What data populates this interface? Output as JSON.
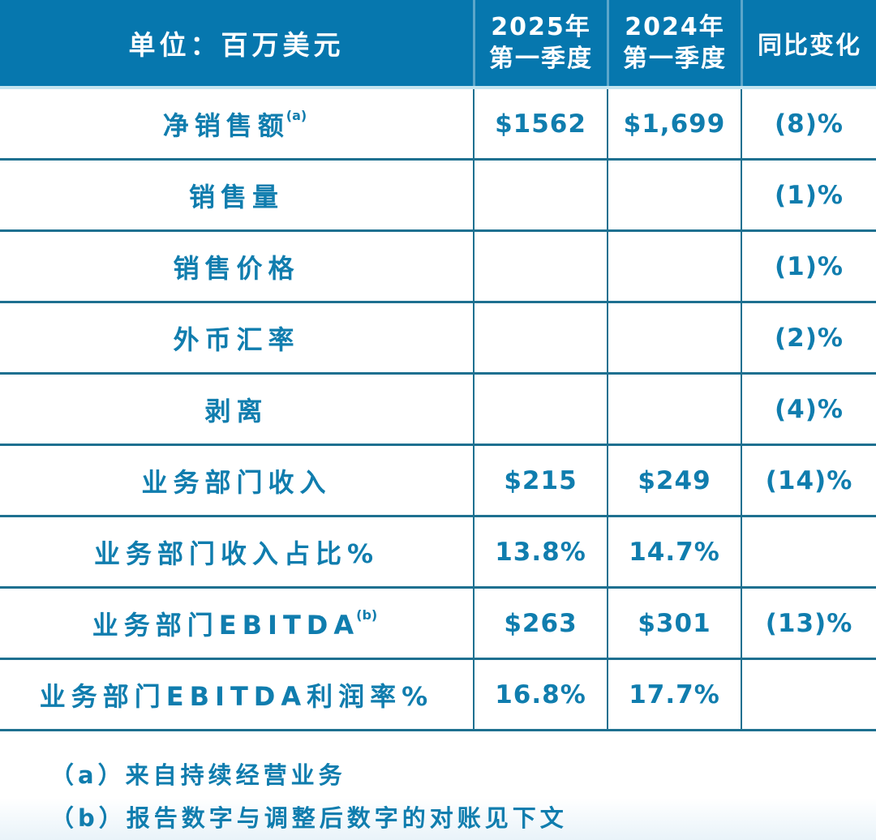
{
  "chart_data": {
    "type": "table",
    "title": "单位：百万美元",
    "columns": [
      "单位：百万美元",
      "2025年第一季度",
      "2024年第一季度",
      "同比变化"
    ],
    "rows": [
      [
        "净销售额(a)",
        "$1562",
        "$1,699",
        "(8)%"
      ],
      [
        "销售量",
        "",
        "",
        "(1)%"
      ],
      [
        "销售价格",
        "",
        "",
        "(1)%"
      ],
      [
        "外币汇率",
        "",
        "",
        "(2)%"
      ],
      [
        "剥离",
        "",
        "",
        "(4)%"
      ],
      [
        "业务部门收入",
        "$215",
        "$249",
        "(14)%"
      ],
      [
        "业务部门收入占比%",
        "13.8%",
        "14.7%",
        ""
      ],
      [
        "业务部门EBITDA(b)",
        "$263",
        "$301",
        "(13)%"
      ],
      [
        "业务部门EBITDA利润率%",
        "16.8%",
        "17.7%",
        ""
      ]
    ],
    "footnotes": [
      "（a）来自持续经营业务",
      "（b）报告数字与调整后数字的对账见下文"
    ]
  },
  "header": {
    "unit_label": "单位：百万美元",
    "col_2025_line1": "2025年",
    "col_2025_line2": "第一季度",
    "col_2024_line1": "2024年",
    "col_2024_line2": "第一季度",
    "col_change": "同比变化"
  },
  "rows": [
    {
      "label": "净销售额",
      "superscript": "(a)",
      "q1_2025": "$1562",
      "q1_2024": "$1,699",
      "yoy": "(8)%"
    },
    {
      "label": "销售量",
      "superscript": "",
      "q1_2025": "",
      "q1_2024": "",
      "yoy": "(1)%"
    },
    {
      "label": "销售价格",
      "superscript": "",
      "q1_2025": "",
      "q1_2024": "",
      "yoy": "(1)%"
    },
    {
      "label": "外币汇率",
      "superscript": "",
      "q1_2025": "",
      "q1_2024": "",
      "yoy": "(2)%"
    },
    {
      "label": "剥离",
      "superscript": "",
      "q1_2025": "",
      "q1_2024": "",
      "yoy": "(4)%"
    },
    {
      "label": "业务部门收入",
      "superscript": "",
      "q1_2025": "$215",
      "q1_2024": "$249",
      "yoy": "(14)%"
    },
    {
      "label": "业务部门收入占比%",
      "superscript": "",
      "q1_2025": "13.8%",
      "q1_2024": "14.7%",
      "yoy": ""
    },
    {
      "label": "业务部门EBITDA",
      "superscript": "(b)",
      "q1_2025": "$263",
      "q1_2024": "$301",
      "yoy": "(13)%"
    },
    {
      "label": "业务部门EBITDA利润率%",
      "superscript": "",
      "q1_2025": "16.8%",
      "q1_2024": "17.7%",
      "yoy": ""
    }
  ],
  "footnotes": [
    "（a）来自持续经营业务",
    "（b）报告数字与调整后数字的对账见下文"
  ],
  "colors": {
    "header_background": "#0677ae",
    "header_text": "#ffffff",
    "body_text": "#107dae",
    "grid_line": "#1e7090",
    "header_strip": "#c3e4f0"
  }
}
